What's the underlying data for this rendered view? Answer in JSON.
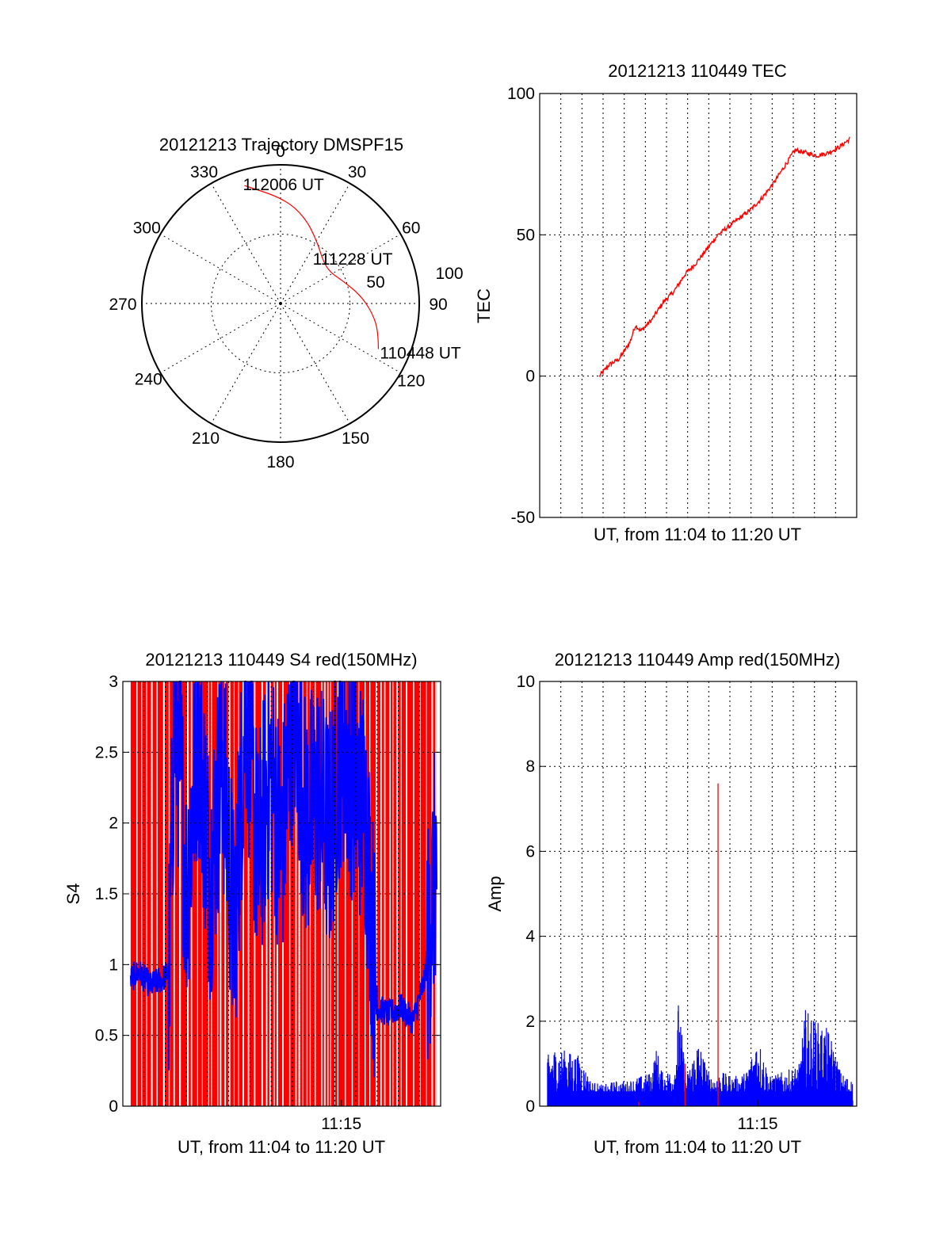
{
  "chart_data": [
    {
      "type": "polar-trajectory",
      "title": "20121213 Trajectory DMSPF15",
      "azimuth_labels": [
        "0",
        "30",
        "60",
        "90",
        "120",
        "150",
        "180",
        "210",
        "240",
        "270",
        "300",
        "330"
      ],
      "elevation_labels": [
        "50",
        "100"
      ],
      "grid": true,
      "series": [
        {
          "color": "#ff0000",
          "points": [
            {
              "az": 115,
              "el": 20
            },
            {
              "az": 106,
              "el": 24
            },
            {
              "az": 96,
              "el": 30
            },
            {
              "az": 84,
              "el": 38
            },
            {
              "az": 70,
              "el": 47
            },
            {
              "az": 58,
              "el": 52
            },
            {
              "az": 45,
              "el": 51
            },
            {
              "az": 30,
              "el": 43
            },
            {
              "az": 16,
              "el": 32
            },
            {
              "az": 2,
              "el": 22
            },
            {
              "az": 343,
              "el": 10
            }
          ]
        }
      ],
      "annotations": [
        {
          "text": "112006 UT",
          "az": 343,
          "el": 10
        },
        {
          "text": "111228 UT",
          "az": 58,
          "el": 52
        },
        {
          "text": "110448 UT",
          "az": 115,
          "el": 20
        }
      ]
    },
    {
      "type": "line",
      "title": "20121213 110449 TEC",
      "xlabel": "UT, from 11:04 to 11:20 UT",
      "ylabel": "TEC",
      "xlim": [
        11.02,
        11.34
      ],
      "ylim": [
        -50,
        100
      ],
      "yticks": [
        "-50",
        "0",
        "50",
        "100"
      ],
      "grid": true,
      "series": [
        {
          "color": "#ff0000",
          "x": [
            11.0803,
            11.09,
            11.1,
            11.1111,
            11.1167,
            11.1222,
            11.1333,
            11.1444,
            11.1556,
            11.1667,
            11.1778,
            11.1889,
            11.2,
            11.2111,
            11.2222,
            11.2333,
            11.2444,
            11.2556,
            11.2667,
            11.2778,
            11.2889,
            11.3,
            11.3111,
            11.3222,
            11.3333
          ],
          "values": [
            0,
            4,
            6,
            12,
            18,
            16,
            20,
            26,
            30,
            36,
            40,
            45,
            50,
            53,
            56,
            59,
            63,
            68,
            74,
            80,
            79,
            78,
            79,
            81,
            84
          ]
        }
      ]
    },
    {
      "type": "line",
      "title": "20121213 110449 S4 red(150MHz)",
      "xlabel": "UT, from 11:04 to 11:20 UT",
      "ylabel": "S4",
      "xlim": [
        11.0667,
        11.3333
      ],
      "ylim": [
        0,
        3
      ],
      "yticks": [
        "0",
        "0.5",
        "1",
        "1.5",
        "2",
        "2.5",
        "3"
      ],
      "xticks": [
        {
          "value": 11.25,
          "label": "11:15"
        }
      ],
      "grid": true,
      "series": [
        {
          "color": "#ff0000",
          "style": "dense-fill",
          "x": [
            11.0733,
            11.1067,
            11.1333,
            11.16,
            11.1867,
            11.2133,
            11.24,
            11.2667,
            11.2933,
            11.32,
            11.33
          ],
          "values": [
            3,
            3,
            3,
            3,
            3,
            3,
            3,
            3,
            3,
            3,
            3
          ]
        },
        {
          "color": "#0000ff",
          "x": [
            11.0733,
            11.08,
            11.09,
            11.1,
            11.1056,
            11.11,
            11.115,
            11.12,
            11.13,
            11.14,
            11.15,
            11.16,
            11.17,
            11.18,
            11.19,
            11.2,
            11.21,
            11.22,
            11.23,
            11.24,
            11.25,
            11.26,
            11.27,
            11.28,
            11.29,
            11.3,
            11.31,
            11.32,
            11.33
          ],
          "values": [
            0.9,
            0.95,
            0.85,
            0.9,
            0.95,
            2.8,
            2.4,
            1.5,
            2.7,
            1.6,
            2.5,
            1.2,
            2.9,
            1.7,
            2.4,
            1.8,
            2.9,
            2.0,
            2.2,
            1.9,
            2.6,
            2.3,
            2.1,
            0.7,
            0.65,
            0.7,
            0.6,
            0.9,
            1.8
          ]
        }
      ]
    },
    {
      "type": "line",
      "title": "20121213 110449 Amp red(150MHz)",
      "xlabel": "UT, from 11:04 to 11:20 UT",
      "ylabel": "Amp",
      "xlim": [
        11.0667,
        11.3333
      ],
      "ylim": [
        0,
        10
      ],
      "yticks": [
        "0",
        "2",
        "4",
        "6",
        "8",
        "10"
      ],
      "xticks": [
        {
          "value": 11.25,
          "label": "11:15"
        }
      ],
      "grid": true,
      "series": [
        {
          "color": "#0000ff",
          "x": [
            11.0733,
            11.08,
            11.09,
            11.1,
            11.105,
            11.11,
            11.12,
            11.13,
            11.14,
            11.15,
            11.16,
            11.165,
            11.17,
            11.18,
            11.1833,
            11.19,
            11.2,
            11.21,
            11.22,
            11.23,
            11.24,
            11.25,
            11.26,
            11.27,
            11.28,
            11.285,
            11.29,
            11.3,
            11.31,
            11.32,
            11.33
          ],
          "values": [
            1.2,
            1.4,
            1.3,
            1.2,
            0.9,
            0.6,
            0.5,
            0.6,
            0.6,
            0.7,
            0.8,
            1.4,
            0.8,
            0.9,
            2.5,
            0.7,
            1.6,
            0.7,
            0.8,
            0.7,
            0.8,
            1.7,
            0.7,
            0.8,
            0.9,
            1.0,
            2.3,
            2.0,
            1.8,
            0.8,
            0.6
          ]
        },
        {
          "color": "#ff0000",
          "style": "spike",
          "x": [
            11.2167,
            11.1889,
            11.15
          ],
          "values": [
            7.6,
            1.0,
            0.1
          ]
        }
      ]
    }
  ]
}
